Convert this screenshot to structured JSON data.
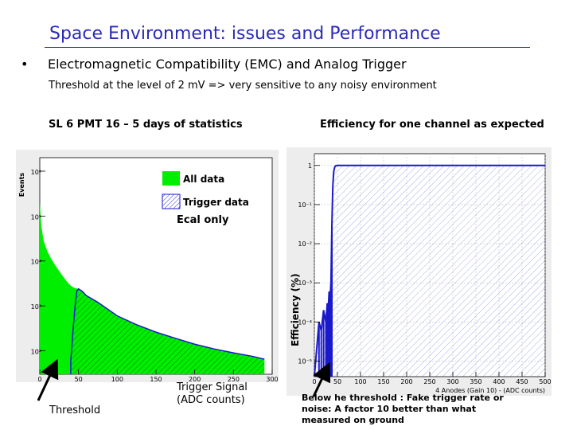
{
  "slide": {
    "title": "Space Environment: issues and Performance",
    "bullet_symbol": "•",
    "bullet_heading": "Electromagnetic Compatibility (EMC) and Analog Trigger",
    "bullet_subtext": "Threshold at the level of 2 mV => very sensitive to any noisy environment",
    "left_caption": "SL 6 PMT 16 – 5 days of statistics",
    "right_caption": "Efficiency for one channel as expected",
    "threshold_label": "Threshold",
    "trigger_signal_line1": "Trigger Signal",
    "trigger_signal_line2": "(ADC counts)",
    "footnote_line1": "Below he threshold : Fake trigger rate or",
    "footnote_line2": "noise: A factor 10 better than what",
    "footnote_line3": "measured on ground",
    "colors": {
      "title": "#2b2bb8",
      "all_data_fill": "#00ee00",
      "trigger_line": "#1a1acc",
      "panel": "#ededed"
    }
  },
  "chart_data": [
    {
      "type": "area",
      "scale_y": "log",
      "ylabel": "Events",
      "xlim": [
        0,
        300
      ],
      "ylim": [
        30,
        2000000
      ],
      "grid": false,
      "legend_position": "top-right",
      "x_ticks": [
        0,
        50,
        100,
        150,
        200,
        250,
        300
      ],
      "x_tick_labels": [
        "0",
        "50",
        "100",
        "150",
        "200",
        "250",
        "300"
      ],
      "y_ticks": [
        100,
        1000,
        10000,
        100000,
        1000000
      ],
      "y_tick_labels": [
        "10²",
        "10³",
        "10⁴",
        "10⁵",
        "10⁶"
      ],
      "annotation": "Ecal only",
      "series": [
        {
          "name": "All data",
          "x": [
            0,
            2,
            5,
            10,
            15,
            20,
            25,
            30,
            35,
            40,
            45,
            50,
            60,
            75,
            100,
            125,
            150,
            175,
            200,
            225,
            250,
            275,
            290
          ],
          "y": [
            200000,
            60000,
            28000,
            16000,
            11000,
            8000,
            6000,
            4500,
            3500,
            2800,
            2500,
            2400,
            1700,
            1200,
            600,
            380,
            260,
            190,
            140,
            110,
            90,
            75,
            65
          ]
        },
        {
          "name": "Trigger data",
          "x": [
            40,
            43,
            46,
            48,
            50,
            55,
            60,
            75,
            100,
            125,
            150,
            175,
            200,
            225,
            250,
            275,
            290
          ],
          "y": [
            60,
            300,
            1200,
            2200,
            2400,
            2100,
            1700,
            1200,
            600,
            380,
            260,
            190,
            140,
            110,
            90,
            75,
            65
          ]
        }
      ]
    },
    {
      "type": "area",
      "scale_y": "log",
      "ylabel": "Efficiency (%)",
      "xlabel": "4 Anodes (Gain 10) - (ADC counts)",
      "xlim": [
        0,
        500
      ],
      "ylim": [
        4e-06,
        2
      ],
      "grid": true,
      "x_ticks": [
        0,
        50,
        100,
        150,
        200,
        250,
        300,
        350,
        400,
        450,
        500
      ],
      "x_tick_labels": [
        "0",
        "50",
        "100",
        "150",
        "200",
        "250",
        "300",
        "350",
        "400",
        "450",
        "500"
      ],
      "y_ticks": [
        1,
        0.1,
        0.01,
        0.001,
        0.0001,
        1e-05,
        1e-06
      ],
      "y_tick_labels": [
        "1",
        "10⁻¹",
        "10⁻²",
        "10⁻³",
        "10⁻⁴",
        "10⁻⁵",
        "10⁻⁶"
      ],
      "series": [
        {
          "x": [
            0,
            10,
            15,
            20,
            25,
            28,
            30,
            32,
            34,
            36,
            38,
            40,
            42,
            44,
            46,
            50,
            500
          ],
          "y": [
            4e-06,
            0.0001,
            6e-05,
            0.0002,
            0.0001,
            0.0003,
            0.0002,
            0.0006,
            0.0004,
            0.001,
            0.03,
            0.3,
            0.7,
            0.9,
            0.98,
            1.0,
            1.0
          ]
        }
      ]
    }
  ]
}
